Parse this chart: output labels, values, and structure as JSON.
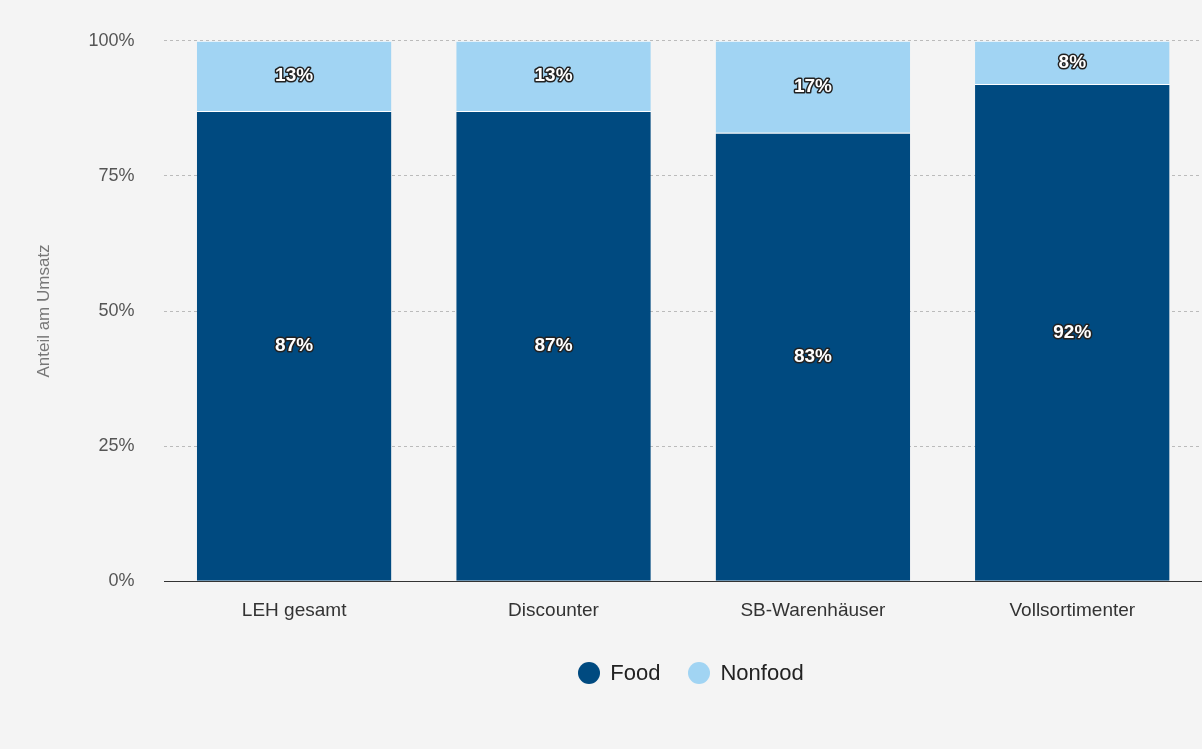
{
  "chart_data": {
    "type": "bar",
    "stacked": true,
    "ylabel": "Anteil am Umsatz",
    "categories": [
      "LEH gesamt",
      "Discounter",
      "SB-Warenhäuser",
      "Vollsortimenter"
    ],
    "series": [
      {
        "name": "Food",
        "color": "#004a80",
        "values": [
          87,
          87,
          83,
          92
        ],
        "value_labels": [
          "87%",
          "87%",
          "83%",
          "92%"
        ]
      },
      {
        "name": "Nonfood",
        "color": "#a1d4f3",
        "values": [
          13,
          13,
          17,
          8
        ],
        "value_labels": [
          "13%",
          "13%",
          "17%",
          "8%"
        ]
      }
    ],
    "ylim": [
      0,
      100
    ],
    "yticks": [
      {
        "value": 0,
        "label": "0%"
      },
      {
        "value": 25,
        "label": "25%"
      },
      {
        "value": 50,
        "label": "50%"
      },
      {
        "value": 75,
        "label": "75%"
      },
      {
        "value": 100,
        "label": "100%"
      }
    ],
    "grid": "y",
    "legend": "bottom"
  }
}
